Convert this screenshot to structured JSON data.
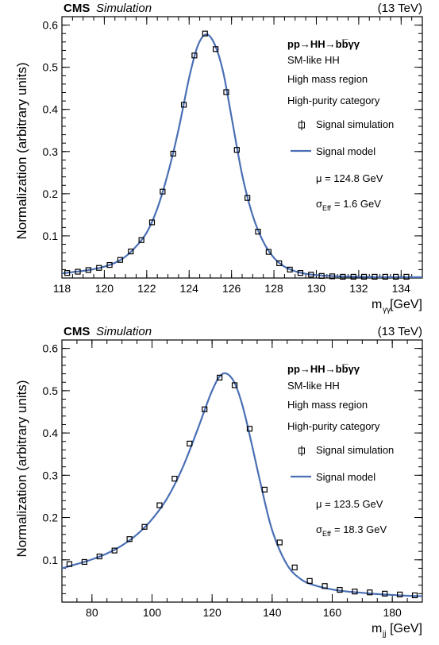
{
  "chart_data": [
    {
      "type": "scatter",
      "experiment": "CMS",
      "status": "Simulation",
      "energy": "(13 TeV)",
      "process": "pp→HH→bb̅γγ",
      "legend_lines": [
        "SM-like HH",
        "High mass region",
        "High-purity category"
      ],
      "legend_entries": [
        "Signal simulation",
        "Signal model"
      ],
      "mu_text": "μ = 124.8 GeV",
      "sigma_text": "= 1.6 GeV",
      "sigma_sub": "Eff",
      "xlabel": "m",
      "xlabel_sub": "γγ",
      "xlabel_unit": "[GeV]",
      "ylabel": "Normalization (arbitrary units)",
      "xlim": [
        118,
        135
      ],
      "ylim": [
        0,
        0.62
      ],
      "xticks": [
        118,
        120,
        122,
        124,
        126,
        128,
        130,
        132,
        134
      ],
      "yticks": [
        0.1,
        0.2,
        0.3,
        0.4,
        0.5,
        0.6
      ],
      "xminor": 0.5,
      "yminor": 0.02,
      "line_color": "#4a6fb5",
      "series": [
        {
          "name": "Signal simulation",
          "x": [
            118.25,
            118.75,
            119.25,
            119.75,
            120.25,
            120.75,
            121.25,
            121.75,
            122.25,
            122.75,
            123.25,
            123.75,
            124.25,
            124.75,
            125.25,
            125.75,
            126.25,
            126.75,
            127.25,
            127.75,
            128.25,
            128.75,
            129.25,
            129.75,
            130.25,
            130.75,
            131.25,
            131.75,
            132.25,
            132.75,
            133.25,
            133.75,
            134.25
          ],
          "y": [
            0.012,
            0.015,
            0.019,
            0.024,
            0.031,
            0.043,
            0.063,
            0.09,
            0.132,
            0.205,
            0.295,
            0.411,
            0.528,
            0.58,
            0.543,
            0.441,
            0.304,
            0.19,
            0.11,
            0.062,
            0.035,
            0.02,
            0.012,
            0.008,
            0.005,
            0.004,
            0.003,
            0.003,
            0.003,
            0.003,
            0.003,
            0.003,
            0.003
          ]
        },
        {
          "name": "Signal model",
          "x": [
            118.0,
            118.5,
            119.0,
            119.5,
            120.0,
            120.5,
            121.0,
            121.5,
            122.0,
            122.5,
            123.0,
            123.5,
            124.0,
            124.4,
            124.8,
            125.2,
            125.6,
            126.0,
            126.5,
            127.0,
            127.5,
            128.0,
            128.5,
            129.0,
            129.5,
            130.0,
            131.0,
            132.0,
            133.0,
            134.0,
            135.0
          ],
          "y": [
            0.011,
            0.014,
            0.017,
            0.021,
            0.027,
            0.036,
            0.051,
            0.075,
            0.108,
            0.165,
            0.248,
            0.352,
            0.475,
            0.55,
            0.578,
            0.555,
            0.49,
            0.382,
            0.245,
            0.148,
            0.086,
            0.048,
            0.027,
            0.016,
            0.01,
            0.007,
            0.004,
            0.003,
            0.002,
            0.002,
            0.002
          ]
        }
      ]
    },
    {
      "type": "scatter",
      "experiment": "CMS",
      "status": "Simulation",
      "energy": "(13 TeV)",
      "process": "pp→HH→bb̅γγ",
      "legend_lines": [
        "SM-like HH",
        "High mass region",
        "High-purity category"
      ],
      "legend_entries": [
        "Signal simulation",
        "Signal model"
      ],
      "mu_text": "μ = 123.5 GeV",
      "sigma_text": "= 18.3 GeV",
      "sigma_sub": "Eff",
      "xlabel": "m",
      "xlabel_sub": "jj",
      "xlabel_unit": "[GeV]",
      "ylabel": "Normalization (arbitrary units)",
      "xlim": [
        70,
        190
      ],
      "ylim": [
        0,
        0.62
      ],
      "xticks": [
        80,
        100,
        120,
        140,
        160,
        180
      ],
      "yticks": [
        0.1,
        0.2,
        0.3,
        0.4,
        0.5,
        0.6
      ],
      "xminor": 5,
      "yminor": 0.02,
      "line_color": "#4a6fb5",
      "series": [
        {
          "name": "Signal simulation",
          "x": [
            72.5,
            77.5,
            82.5,
            87.5,
            92.5,
            97.5,
            102.5,
            107.5,
            112.5,
            117.5,
            122.5,
            127.5,
            132.5,
            137.5,
            142.5,
            147.5,
            152.5,
            157.5,
            162.5,
            167.5,
            172.5,
            177.5,
            182.5,
            187.5
          ],
          "y": [
            0.09,
            0.095,
            0.108,
            0.122,
            0.149,
            0.178,
            0.229,
            0.292,
            0.375,
            0.456,
            0.531,
            0.513,
            0.41,
            0.266,
            0.141,
            0.082,
            0.05,
            0.038,
            0.029,
            0.025,
            0.023,
            0.02,
            0.018,
            0.016
          ]
        },
        {
          "name": "Signal model",
          "x": [
            70,
            75,
            80,
            85,
            90,
            95,
            100,
            105,
            110,
            115,
            120,
            123.5,
            127,
            130,
            133,
            136,
            140,
            145,
            150,
            155,
            160,
            165,
            170,
            175,
            180,
            185,
            190
          ],
          "y": [
            0.08,
            0.09,
            0.101,
            0.115,
            0.134,
            0.16,
            0.196,
            0.245,
            0.315,
            0.405,
            0.5,
            0.54,
            0.525,
            0.468,
            0.38,
            0.285,
            0.17,
            0.088,
            0.052,
            0.038,
            0.03,
            0.025,
            0.022,
            0.019,
            0.017,
            0.015,
            0.014
          ]
        }
      ]
    }
  ]
}
